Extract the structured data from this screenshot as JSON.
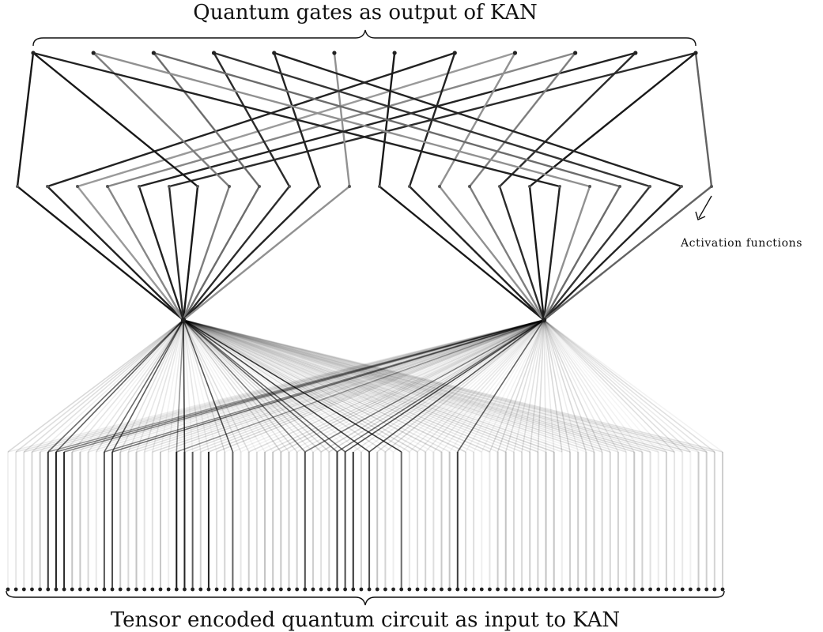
{
  "labels": {
    "top_title": "Quantum gates as output of KAN",
    "bottom_title": "Tensor encoded quantum circuit as input to KAN",
    "activation_note": "Activation functions"
  },
  "network": {
    "input_node_count": 90,
    "hidden_node_count": 2,
    "output_node_count": 12,
    "description": "Kolmogorov-Arnold Network mapping tensor-encoded circuit inputs to quantum gate outputs"
  },
  "colors": {
    "edge_dark": "#111111",
    "edge_light": "#bbbbbb",
    "node": "#222222",
    "background": "#ffffff"
  }
}
